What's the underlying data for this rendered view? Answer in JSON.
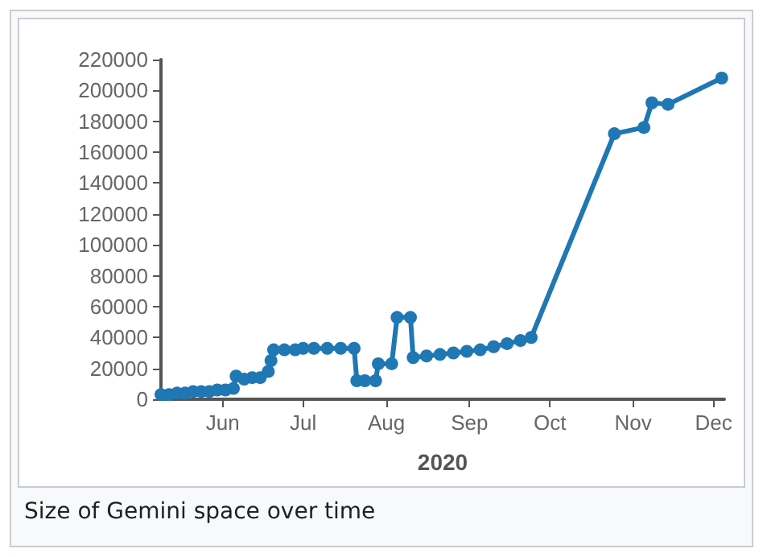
{
  "chart_data": {
    "type": "line",
    "xlabel": "2020",
    "annotations": [
      "Size of Gemini space over time"
    ],
    "x": [
      "2020-05-09",
      "2020-05-12",
      "2020-05-15",
      "2020-05-18",
      "2020-05-21",
      "2020-05-24",
      "2020-05-27",
      "2020-05-30",
      "2020-06-02",
      "2020-06-05",
      "2020-06-06",
      "2020-06-09",
      "2020-06-12",
      "2020-06-15",
      "2020-06-18",
      "2020-06-19",
      "2020-06-20",
      "2020-06-24",
      "2020-06-28",
      "2020-07-01",
      "2020-07-05",
      "2020-07-10",
      "2020-07-15",
      "2020-07-20",
      "2020-07-21",
      "2020-07-24",
      "2020-07-28",
      "2020-07-29",
      "2020-08-03",
      "2020-08-05",
      "2020-08-10",
      "2020-08-11",
      "2020-08-16",
      "2020-08-21",
      "2020-08-26",
      "2020-08-31",
      "2020-09-05",
      "2020-09-10",
      "2020-09-15",
      "2020-09-20",
      "2020-09-24",
      "2020-10-25",
      "2020-11-05",
      "2020-11-08",
      "2020-11-14",
      "2020-12-04"
    ],
    "series": [
      {
        "color": "#1f77b4",
        "values": [
          3000,
          3000,
          4000,
          4000,
          5000,
          5000,
          5000,
          6000,
          6000,
          7000,
          15000,
          13000,
          14000,
          14000,
          18000,
          25000,
          32000,
          32000,
          32000,
          33000,
          33000,
          33000,
          33000,
          33000,
          12000,
          12000,
          12000,
          23000,
          23000,
          53000,
          53000,
          27000,
          28000,
          29000,
          30000,
          31000,
          32000,
          34000,
          36000,
          38000,
          40000,
          172000,
          176000,
          192000,
          191000,
          208000
        ]
      }
    ],
    "xlim": [
      "2020-05-09",
      "2020-12-05"
    ],
    "xticks": [
      {
        "value": "2020-06-01",
        "label": "Jun"
      },
      {
        "value": "2020-07-01",
        "label": "Jul"
      },
      {
        "value": "2020-08-01",
        "label": "Aug"
      },
      {
        "value": "2020-09-01",
        "label": "Sep"
      },
      {
        "value": "2020-10-01",
        "label": "Oct"
      },
      {
        "value": "2020-11-01",
        "label": "Nov"
      },
      {
        "value": "2020-12-01",
        "label": "Dec"
      }
    ],
    "ylim": [
      0,
      220000
    ],
    "yticks": [
      0,
      20000,
      40000,
      60000,
      80000,
      100000,
      120000,
      140000,
      160000,
      180000,
      200000,
      220000
    ],
    "grid": false,
    "marker": "circle",
    "line_style": "solid"
  }
}
